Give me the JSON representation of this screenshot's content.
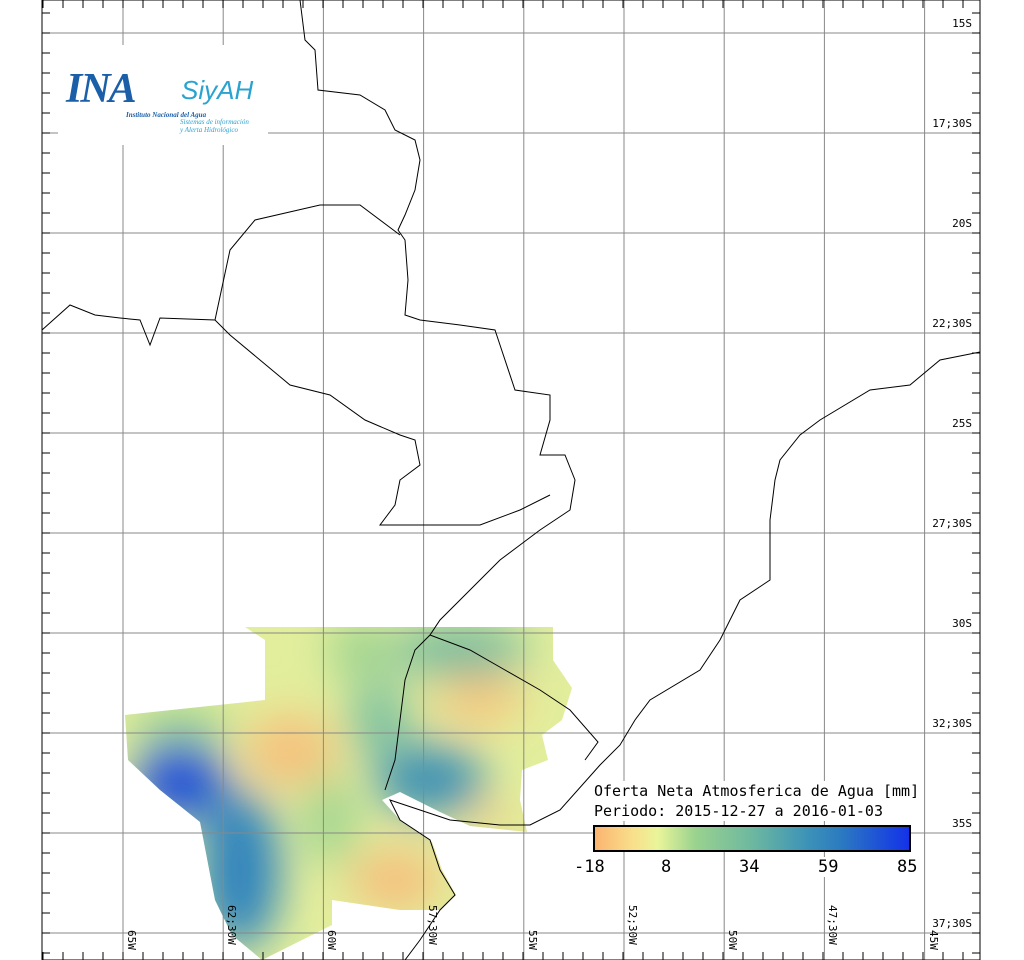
{
  "logo": {
    "name": "INA",
    "product": "SiyAH",
    "institute": "Instituto Nacional del Agua",
    "subtitle_1": "Sistemas de información",
    "subtitle_2": "y Alerta Hidrológico"
  },
  "legend": {
    "title": "Oferta Neta Atmosferica de Agua [mm]",
    "period": "Periodo: 2015-12-27 a 2016-01-03",
    "ticks": [
      "-18",
      "8",
      "34",
      "59",
      "85"
    ],
    "colors": [
      "#fbb470",
      "#f9df8c",
      "#e9f59a",
      "#9ad28f",
      "#6db8a0",
      "#3b92b8",
      "#2c7bc0",
      "#1432e8"
    ]
  },
  "axes": {
    "lat_labels": [
      "15S",
      "17;30S",
      "20S",
      "22;30S",
      "25S",
      "27;30S",
      "30S",
      "32;30S",
      "35S",
      "37;30S"
    ],
    "lon_labels": [
      "65W",
      "62;30W",
      "60W",
      "57;30W",
      "55W",
      "52;30W",
      "50W",
      "47;30W",
      "45W"
    ]
  }
}
